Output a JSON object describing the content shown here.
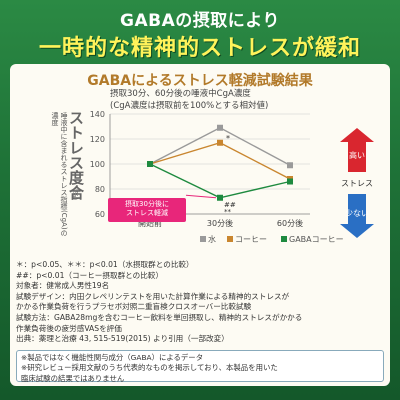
{
  "header": {
    "line1": "GABAの摂取により",
    "line2": "一時的な精神的ストレスが緩和"
  },
  "card": {
    "title": "GABAによるストレス軽減試験結果",
    "subtitle1": "摂取30分、60分後の唾液中CgA濃度",
    "subtitle2": "(CgA濃度は摂取前を100%とする相対値)",
    "ylabel_small": "唾液中に含まれるストレス指標(CgA)の濃度",
    "ylabel_big": "ストレス度合",
    "ylabel_unit": "(%)",
    "callout": "摂取30分後に\nストレス軽減",
    "side_label": "ストレス",
    "side_high": "高い",
    "side_low": "少ない"
  },
  "chart_data": {
    "type": "line",
    "x": [
      "開始前",
      "30分後",
      "60分後"
    ],
    "ylim": [
      60,
      140
    ],
    "yticks": [
      60,
      80,
      100,
      120,
      140
    ],
    "series": [
      {
        "name": "水",
        "values": [
          100,
          129,
          99
        ],
        "color": "#9a9a9a"
      },
      {
        "name": "コーヒー",
        "values": [
          100,
          117,
          88
        ],
        "color": "#c9862f"
      },
      {
        "name": "GABAコーヒー",
        "values": [
          100,
          73,
          86
        ],
        "color": "#1e8a3f"
      }
    ],
    "annotations": [
      {
        "x": "30分後",
        "text": "*"
      },
      {
        "x": "30分後",
        "text": "##"
      },
      {
        "x": "30分後",
        "text": "**"
      }
    ]
  },
  "notes": [
    "＊：p<0.05、＊＊：p<0.01（水摂取群との比較）",
    "##：p<0.01（コーヒー摂取群との比較）",
    "対象者：健常成人男性19名",
    "試験デザイン：内田クレペリンテストを用いた計算作業による精神的ストレスが",
    "かかる作業負荷を行うプラセボ対照二重盲検クロスオーバー比較試験",
    "試験方法：GABA28mgを含むコーヒー飲料を単回摂取し、精神的ストレスがかかる",
    "作業負荷後の疲労感VASを評価",
    "出典：薬理と治療 43, 515-519(2015) より引用（一部改変）"
  ],
  "disclaimer": [
    "※製品ではなく機能性関与成分（GABA）によるデータ",
    "※研究レビュー採用文献のうち代表的なものを掲示しており、本製品を用いた",
    "臨床試験の結果ではありません"
  ],
  "colors": {
    "background": "#1f7338",
    "accent_yellow": "#fff35a",
    "title_brown": "#b27a2a",
    "callout_pink": "#e8267a",
    "arrow_red": "#d9262f",
    "arrow_blue": "#2a6fc4"
  }
}
